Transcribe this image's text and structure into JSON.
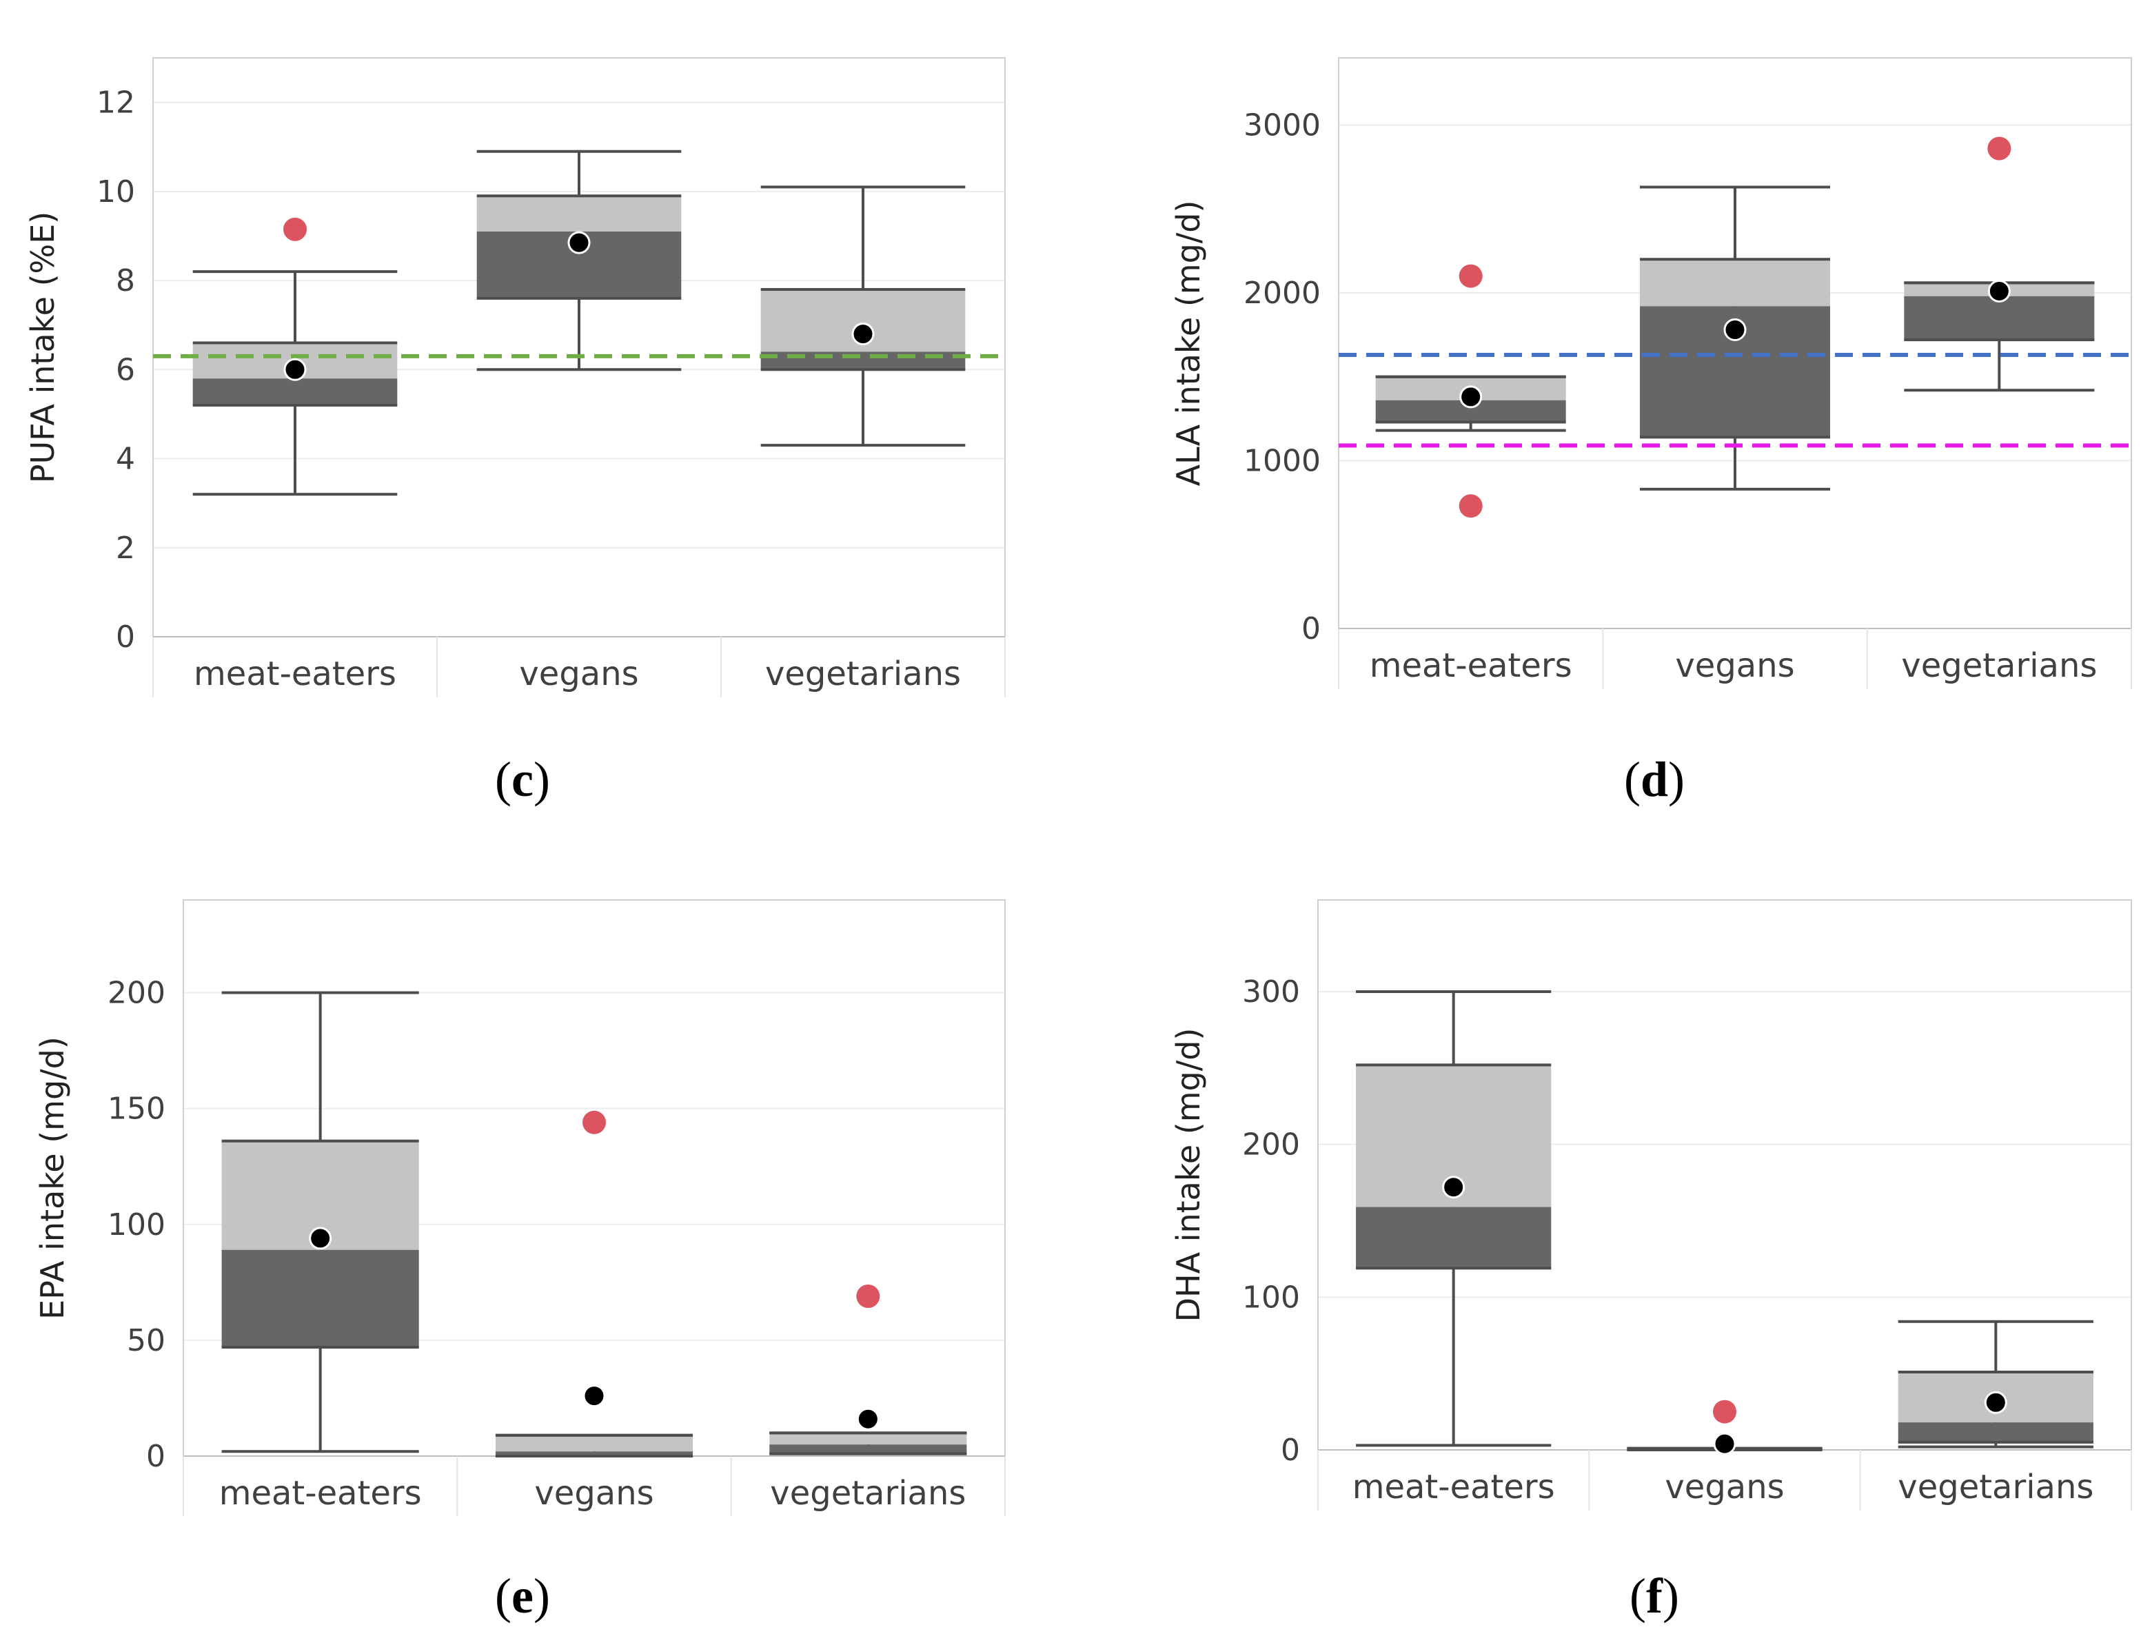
{
  "colors": {
    "box_upper": "#c4c4c4",
    "box_lower": "#666666",
    "whisker": "#4d4d4d",
    "mean_point": "#000000",
    "red_point": "#dc5460",
    "green_line": "#70ad47",
    "blue_line": "#4472c4",
    "magenta_line": "#e81ae8",
    "grid": "#ececec",
    "frame": "#cfcfcf"
  },
  "chart_data": [
    {
      "type": "box",
      "panel_label": "(c)",
      "ylabel": "PUFA intake (%E)",
      "ylim": [
        0,
        13
      ],
      "yticks": [
        0,
        2,
        4,
        6,
        8,
        10,
        12
      ],
      "categories": [
        "meat-eaters",
        "vegans",
        "vegetarians"
      ],
      "boxes": [
        {
          "min": 3.2,
          "q1": 5.2,
          "median": 5.8,
          "q3": 6.6,
          "max": 8.2,
          "mean": 6.0
        },
        {
          "min": 6.0,
          "q1": 7.6,
          "median": 9.1,
          "q3": 9.9,
          "max": 10.9,
          "mean": 8.85
        },
        {
          "min": 4.3,
          "q1": 6.0,
          "median": 6.4,
          "q3": 7.8,
          "max": 10.1,
          "mean": 6.8
        }
      ],
      "red_points": [
        {
          "category": "meat-eaters",
          "value": 9.15
        }
      ],
      "reference_lines": [
        {
          "value": 6.3,
          "color": "green_line"
        }
      ]
    },
    {
      "type": "box",
      "panel_label": "(d)",
      "ylabel": "ALA intake (mg/d)",
      "ylim": [
        0,
        3400
      ],
      "yticks": [
        0,
        1000,
        2000,
        3000
      ],
      "categories": [
        "meat-eaters",
        "vegans",
        "vegetarians"
      ],
      "boxes": [
        {
          "min": 1180,
          "q1": 1230,
          "median": 1360,
          "q3": 1500,
          "max": 1500,
          "mean": 1380
        },
        {
          "min": 830,
          "q1": 1140,
          "median": 1920,
          "q3": 2200,
          "max": 2630,
          "mean": 1780
        },
        {
          "min": 1420,
          "q1": 1720,
          "median": 1980,
          "q3": 2060,
          "max": 2060,
          "mean": 2010
        }
      ],
      "red_points": [
        {
          "category": "meat-eaters",
          "value": 2100
        },
        {
          "category": "meat-eaters",
          "value": 730
        },
        {
          "category": "vegetarians",
          "value": 2860
        }
      ],
      "reference_lines": [
        {
          "value": 1630,
          "color": "blue_line"
        },
        {
          "value": 1090,
          "color": "magenta_line"
        }
      ]
    },
    {
      "type": "box",
      "panel_label": "(e)",
      "ylabel": "EPA intake (mg/d)",
      "ylim": [
        0,
        240
      ],
      "yticks": [
        0,
        50,
        100,
        150,
        200
      ],
      "categories": [
        "meat-eaters",
        "vegans",
        "vegetarians"
      ],
      "boxes": [
        {
          "min": 2,
          "q1": 47,
          "median": 89,
          "q3": 136,
          "max": 200,
          "mean": 94
        },
        {
          "min": 0,
          "q1": 0,
          "median": 2,
          "q3": 9,
          "max": 9,
          "mean": 26
        },
        {
          "min": 1,
          "q1": 1,
          "median": 5,
          "q3": 10,
          "max": 10,
          "mean": 16
        }
      ],
      "red_points": [
        {
          "category": "vegans",
          "value": 144
        },
        {
          "category": "vegetarians",
          "value": 69
        }
      ],
      "reference_lines": []
    },
    {
      "type": "box",
      "panel_label": "(f)",
      "ylabel": "DHA intake (mg/d)",
      "ylim": [
        0,
        360
      ],
      "yticks": [
        0,
        100,
        200,
        300
      ],
      "categories": [
        "meat-eaters",
        "vegans",
        "vegetarians"
      ],
      "boxes": [
        {
          "min": 3,
          "q1": 119,
          "median": 159,
          "q3": 252,
          "max": 300,
          "mean": 172
        },
        {
          "min": 0,
          "q1": 0,
          "median": 1,
          "q3": 1,
          "max": 1,
          "mean": 4
        },
        {
          "min": 2,
          "q1": 5,
          "median": 18,
          "q3": 51,
          "max": 84,
          "mean": 31
        }
      ],
      "red_points": [
        {
          "category": "vegans",
          "value": 25
        }
      ],
      "reference_lines": []
    }
  ]
}
